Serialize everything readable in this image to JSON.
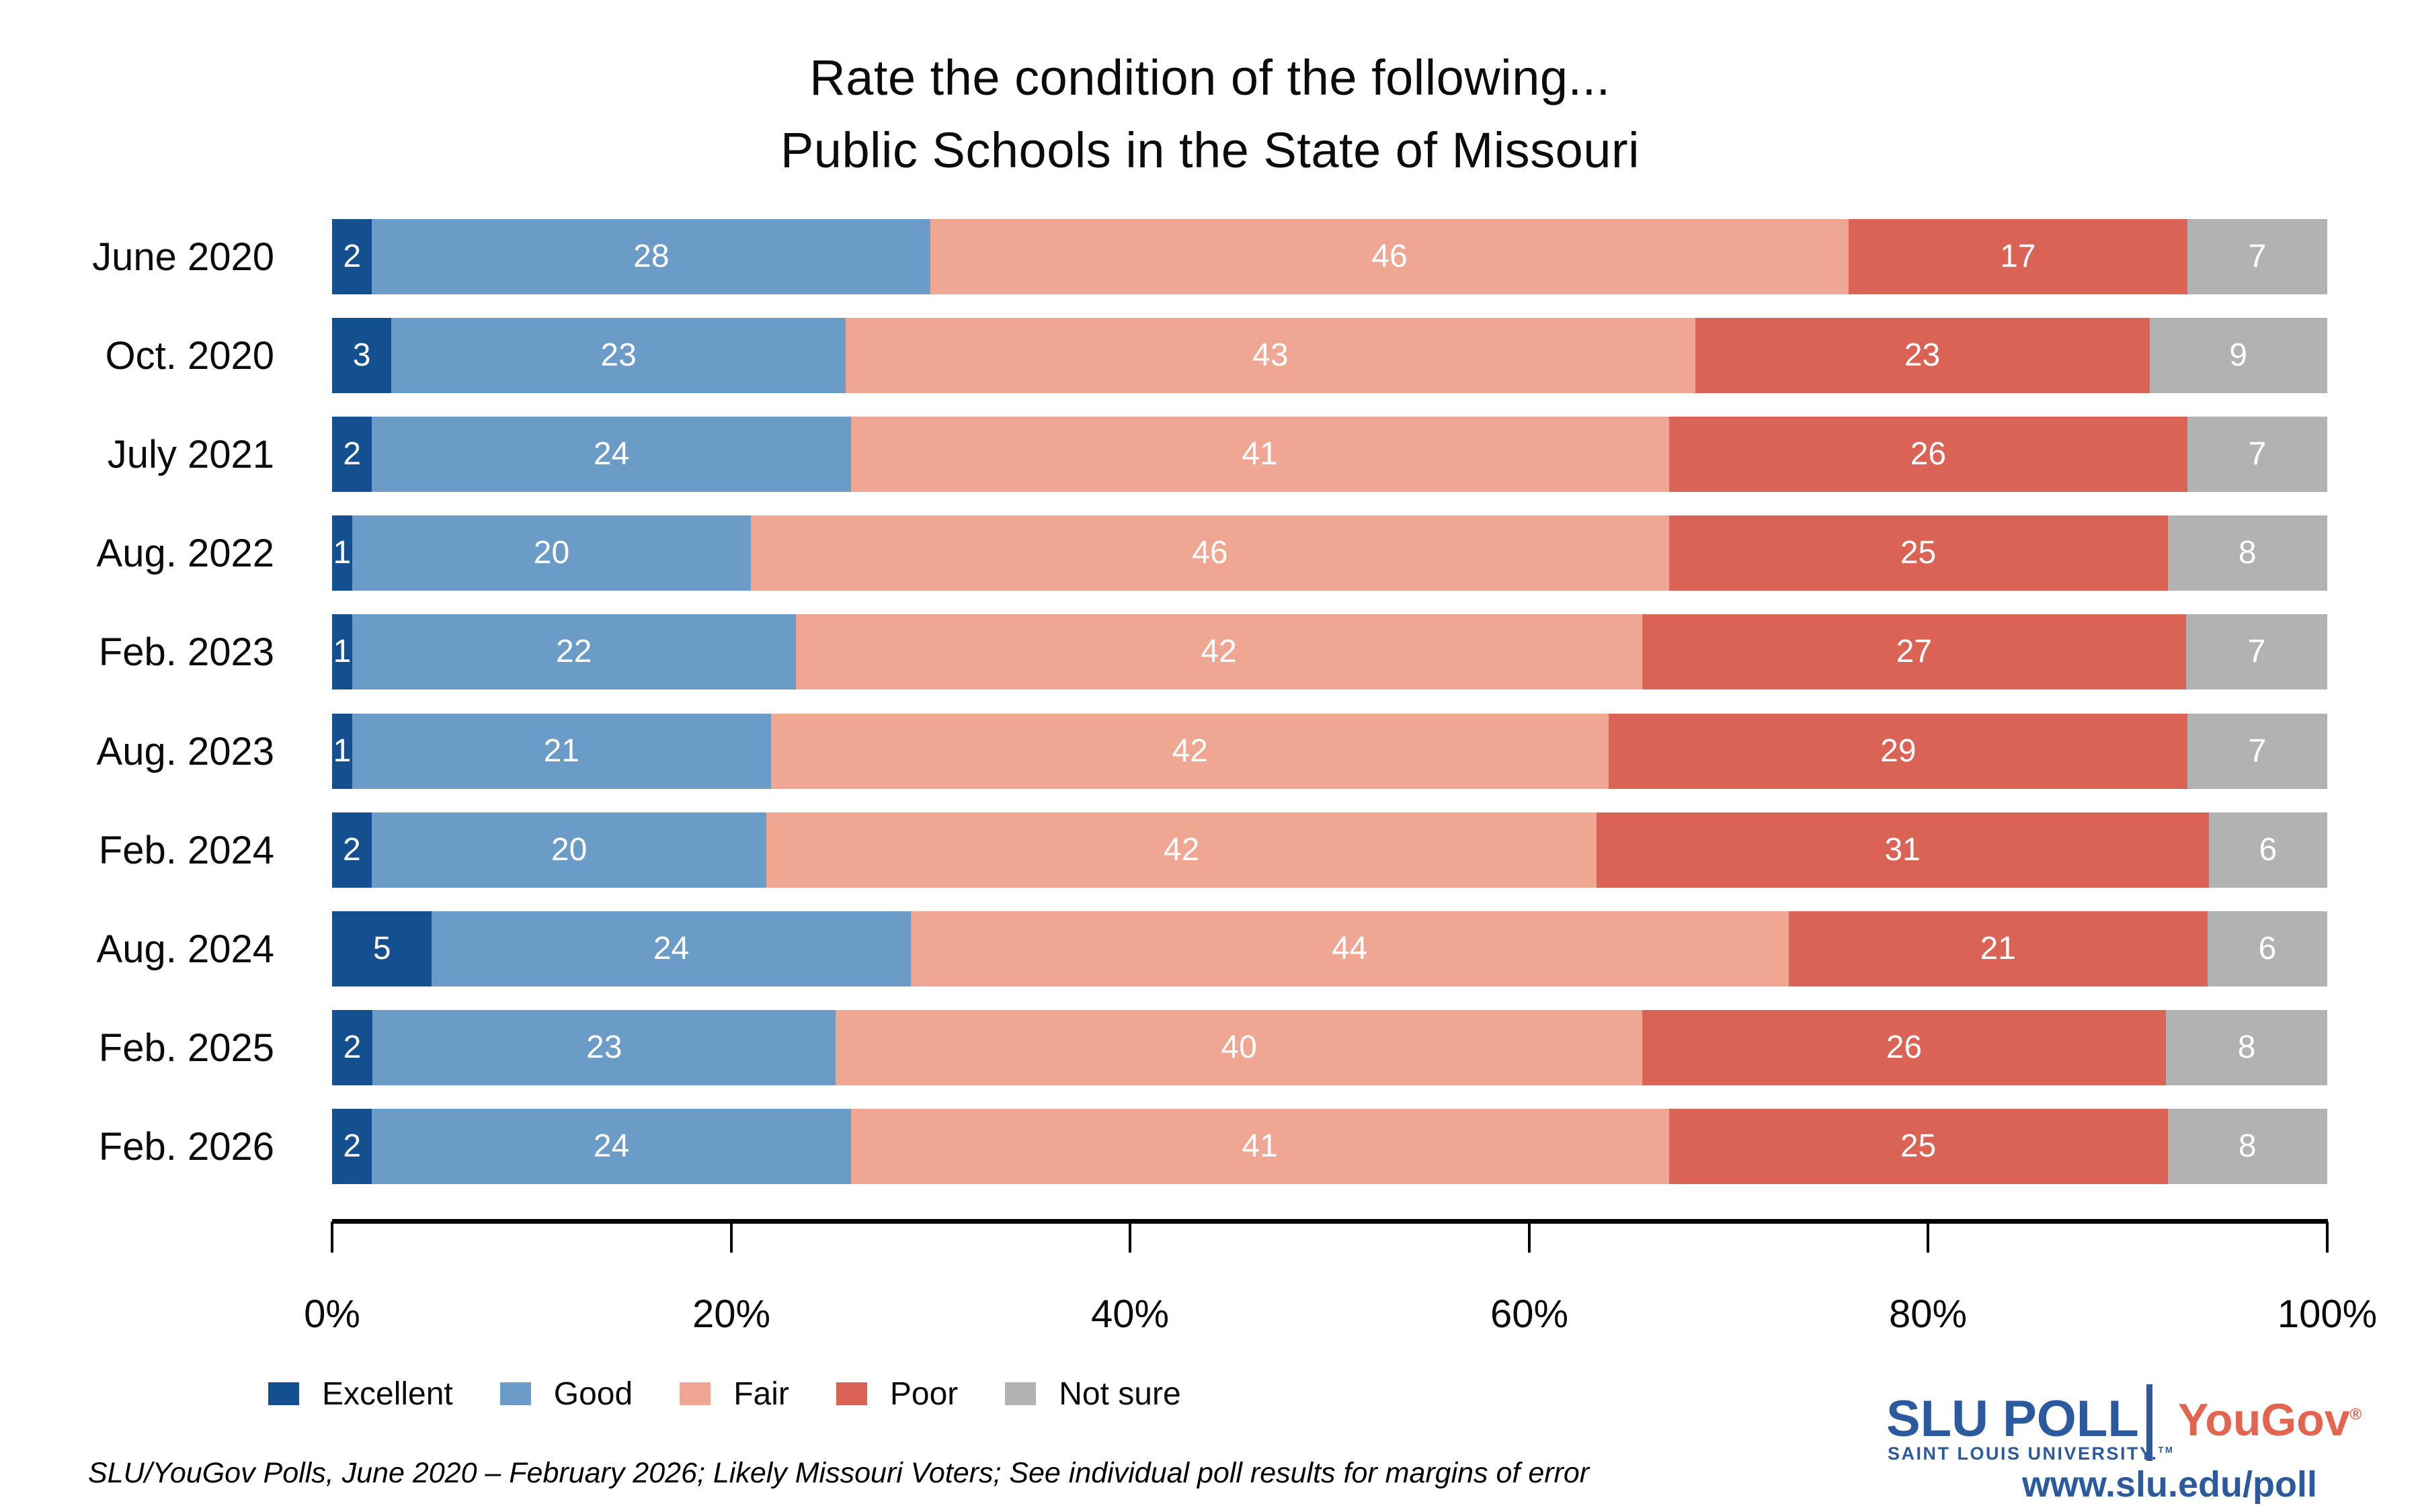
{
  "title": {
    "line1": "Rate the condition of the following...",
    "line2": "Public Schools in the State of Missouri"
  },
  "chart_data": {
    "type": "bar",
    "stacked": true,
    "orientation": "horizontal",
    "categories": [
      "June 2020",
      "Oct. 2020",
      "July 2021",
      "Aug. 2022",
      "Feb. 2023",
      "Aug. 2023",
      "Feb. 2024",
      "Aug. 2024",
      "Feb. 2025",
      "Feb. 2026"
    ],
    "series": [
      {
        "name": "Excellent",
        "color": "#14508f",
        "values": [
          2,
          3,
          2,
          1,
          1,
          1,
          2,
          5,
          2,
          2
        ]
      },
      {
        "name": "Good",
        "color": "#6b9cc7",
        "values": [
          28,
          23,
          24,
          20,
          22,
          21,
          20,
          24,
          23,
          24
        ]
      },
      {
        "name": "Fair",
        "color": "#efa793",
        "values": [
          46,
          43,
          41,
          46,
          42,
          42,
          42,
          44,
          40,
          41
        ]
      },
      {
        "name": "Poor",
        "color": "#db6355",
        "values": [
          17,
          23,
          26,
          25,
          27,
          29,
          31,
          21,
          26,
          25
        ]
      },
      {
        "name": "Not sure",
        "color": "#b3b2b2",
        "values": [
          7,
          9,
          7,
          8,
          7,
          7,
          6,
          6,
          8,
          8
        ]
      }
    ],
    "xlim": [
      0,
      100
    ],
    "xtick_labels": [
      "0%",
      "20%",
      "40%",
      "60%",
      "80%",
      "100%"
    ],
    "grid": false,
    "legend_position": "bottom-left",
    "value_labels_shown": true
  },
  "footer": {
    "source_note": "SLU/YouGov Polls, June 2020 – February 2026; Likely Missouri Voters; See individual poll results for margins of error"
  },
  "branding": {
    "slu_poll": "SLU POLL",
    "slu_sub": "SAINT LOUIS UNIVERSITY.",
    "slu_sub_tm": "TM",
    "yougov": "YouGov",
    "yougov_registered": "®",
    "url": "www.slu.edu/poll",
    "slu_blue": "#2b5b9e",
    "yougov_coral": "#e4654f"
  }
}
